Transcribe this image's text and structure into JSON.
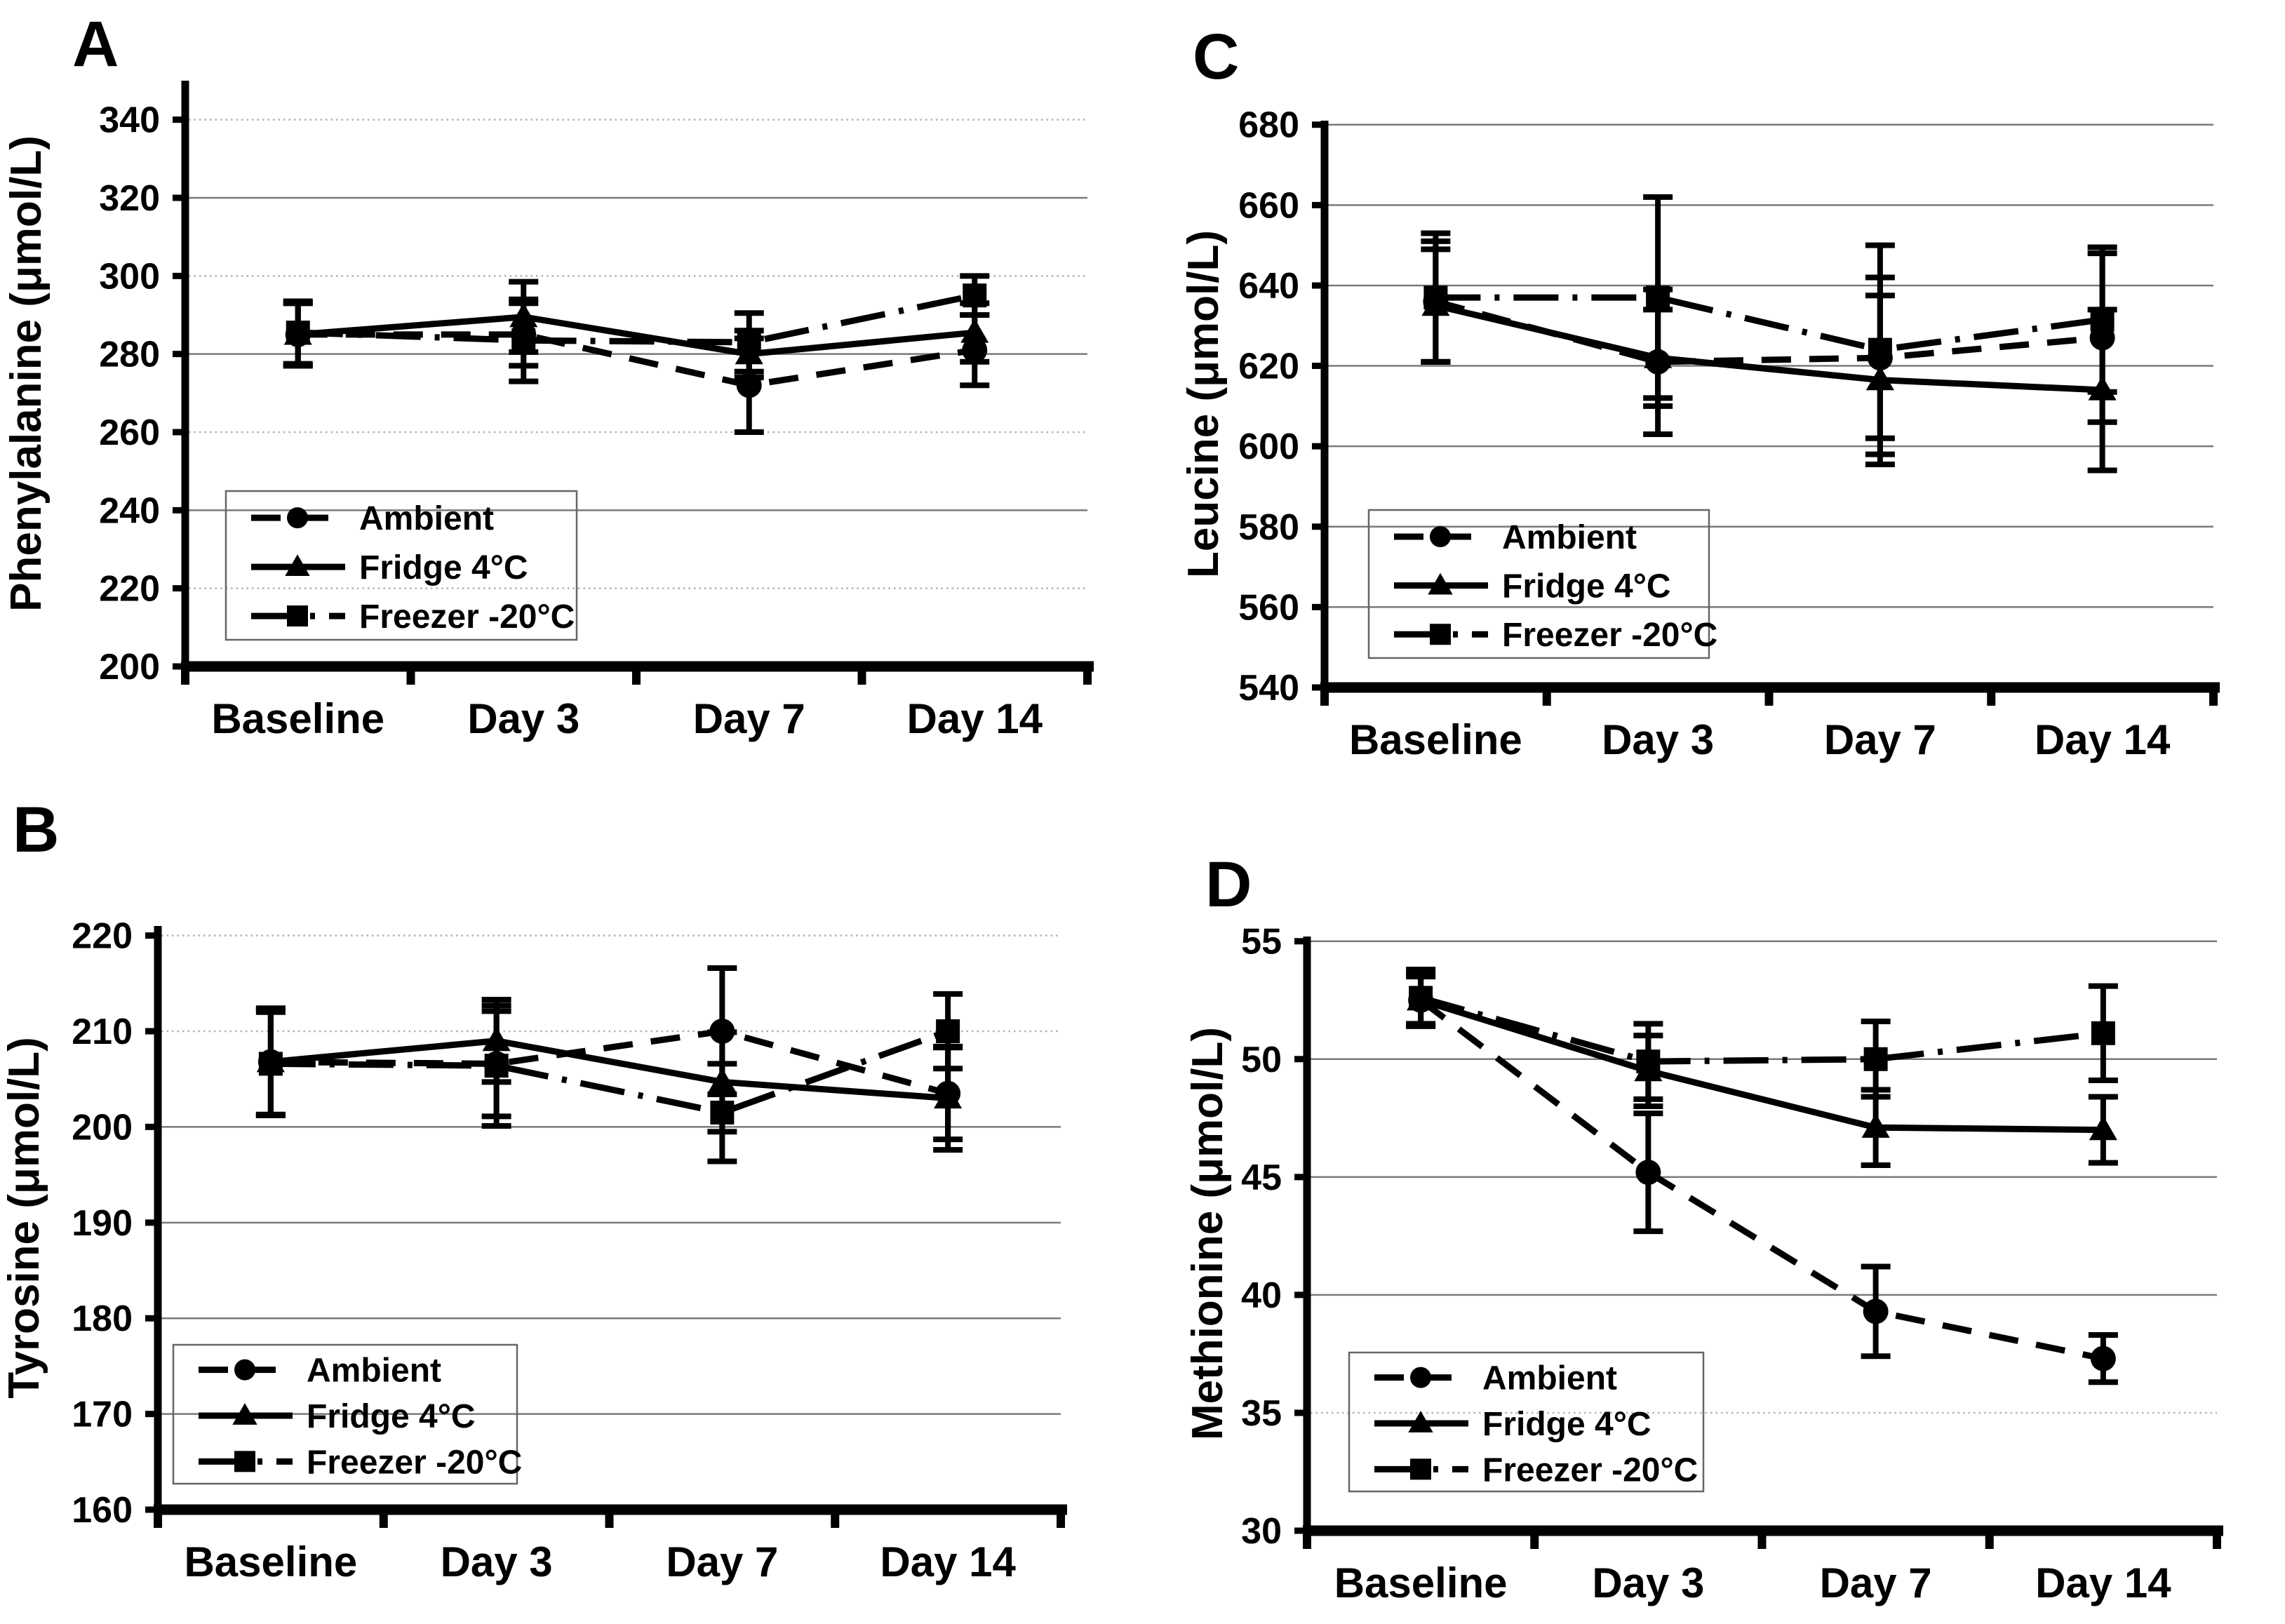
{
  "figure": {
    "background": "#ffffff",
    "foreground": "#000000",
    "panel_letters": [
      "A",
      "B",
      "C",
      "D"
    ],
    "legend_labels": [
      "Ambient",
      "Fridge 4°C",
      "Freezer -20°C"
    ]
  },
  "chart_data": [
    {
      "type": "line",
      "panel_label": "A",
      "title": "",
      "xlabel": "",
      "ylabel": "Phenylalanine (μmol/L)",
      "categories": [
        "Baseline",
        "Day 3",
        "Day 7",
        "Day 14"
      ],
      "ylim": [
        200,
        340
      ],
      "yticks": [
        200,
        220,
        240,
        260,
        280,
        300,
        320,
        340
      ],
      "grid": true,
      "legend_position": "lower-left",
      "series": [
        {
          "name": "Ambient",
          "color": "#000000",
          "marker": "circle",
          "linestyle": "dashed",
          "values": [
            285,
            285,
            272,
            281
          ],
          "errors": [
            8,
            8,
            12,
            9
          ]
        },
        {
          "name": "Fridge 4°C",
          "color": "#000000",
          "marker": "triangle",
          "linestyle": "solid",
          "values": [
            285,
            289.5,
            280,
            285.5
          ],
          "errors": [
            8,
            9,
            6,
            7.5
          ]
        },
        {
          "name": "Freezer -20°C",
          "color": "#000000",
          "marker": "square",
          "linestyle": "dashdot",
          "values": [
            285.5,
            283.5,
            283,
            295
          ],
          "errors": [
            8,
            10.5,
            7.5,
            5
          ]
        }
      ]
    },
    {
      "type": "line",
      "panel_label": "B",
      "title": "",
      "xlabel": "",
      "ylabel": "Tyrosine (μmol/L)",
      "categories": [
        "Baseline",
        "Day 3",
        "Day 7",
        "Day 14"
      ],
      "ylim": [
        160,
        220
      ],
      "yticks": [
        160,
        170,
        180,
        190,
        200,
        210,
        220
      ],
      "grid": true,
      "legend_position": "lower-left",
      "series": [
        {
          "name": "Ambient",
          "color": "#000000",
          "marker": "circle",
          "linestyle": "dashed",
          "values": [
            206.8,
            206.6,
            210,
            203.5
          ],
          "errors": [
            5.6,
            5.5,
            6.6,
            4.8
          ]
        },
        {
          "name": "Fridge 4°C",
          "color": "#000000",
          "marker": "triangle",
          "linestyle": "solid",
          "values": [
            206.8,
            209,
            204.7,
            203
          ],
          "errors": [
            5.5,
            4.3,
            5.2,
            5.4
          ]
        },
        {
          "name": "Freezer -20°C",
          "color": "#000000",
          "marker": "square",
          "linestyle": "dashdot",
          "values": [
            206.6,
            206.4,
            201.5,
            210
          ],
          "errors": [
            5.4,
            6.3,
            5.1,
            3.9
          ]
        }
      ]
    },
    {
      "type": "line",
      "panel_label": "C",
      "title": "",
      "xlabel": "",
      "ylabel": "Leucine (μmol/L)",
      "categories": [
        "Baseline",
        "Day 3",
        "Day 7",
        "Day 14"
      ],
      "ylim": [
        540,
        680
      ],
      "yticks": [
        540,
        560,
        580,
        600,
        620,
        640,
        660,
        680
      ],
      "grid": true,
      "legend_position": "lower-left",
      "series": [
        {
          "name": "Ambient",
          "color": "#000000",
          "marker": "circle",
          "linestyle": "dashed",
          "values": [
            636,
            621,
            622,
            627
          ],
          "errors": [
            15,
            18,
            20,
            21
          ]
        },
        {
          "name": "Fridge 4°C",
          "color": "#000000",
          "marker": "triangle",
          "linestyle": "solid",
          "values": [
            635,
            622,
            616.5,
            614
          ],
          "errors": [
            14,
            12,
            21,
            20
          ]
        },
        {
          "name": "Freezer -20°C",
          "color": "#000000",
          "marker": "square",
          "linestyle": "dashdot",
          "values": [
            637,
            637,
            624,
            631.5
          ],
          "errors": [
            16,
            25,
            26,
            18
          ]
        }
      ]
    },
    {
      "type": "line",
      "panel_label": "D",
      "title": "",
      "xlabel": "",
      "ylabel": "Methionine (μmol/L)",
      "categories": [
        "Baseline",
        "Day 3",
        "Day 7",
        "Day 14"
      ],
      "ylim": [
        30,
        55
      ],
      "yticks": [
        30,
        35,
        40,
        45,
        50,
        55
      ],
      "grid": true,
      "legend_position": "lower-left",
      "series": [
        {
          "name": "Ambient",
          "color": "#000000",
          "marker": "circle",
          "linestyle": "dashed",
          "values": [
            52.5,
            45.2,
            39.3,
            37.3
          ],
          "errors": [
            1.1,
            2.5,
            1.9,
            1.0
          ]
        },
        {
          "name": "Fridge 4°C",
          "color": "#000000",
          "marker": "triangle",
          "linestyle": "solid",
          "values": [
            52.5,
            49.5,
            47.1,
            47.0
          ],
          "errors": [
            1.0,
            1.5,
            1.6,
            1.4
          ]
        },
        {
          "name": "Freezer -20°C",
          "color": "#000000",
          "marker": "square",
          "linestyle": "dashdot",
          "values": [
            52.6,
            49.9,
            50.0,
            51.1
          ],
          "errors": [
            1.2,
            1.6,
            1.6,
            2.0
          ]
        }
      ]
    }
  ]
}
